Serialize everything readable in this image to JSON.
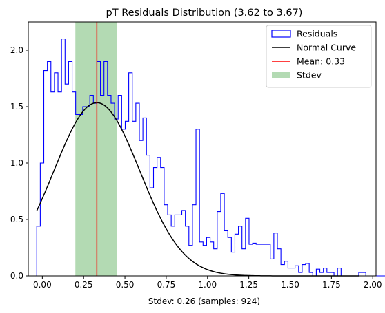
{
  "chart_data": {
    "type": "histogram",
    "title": "pT Residuals Distribution (3.62 to 3.67)",
    "xlabel": "Stdev: 0.26 (samples: 924)",
    "ylabel": "",
    "xlim": [
      -0.085,
      2.02
    ],
    "ylim": [
      0,
      2.25
    ],
    "xticks": [
      0.0,
      0.25,
      0.5,
      0.75,
      1.0,
      1.25,
      1.5,
      1.75,
      2.0
    ],
    "xtick_labels": [
      "0.00",
      "0.25",
      "0.50",
      "0.75",
      "1.00",
      "1.25",
      "1.50",
      "1.75",
      "2.00"
    ],
    "yticks": [
      0.0,
      0.5,
      1.0,
      1.5,
      2.0
    ],
    "ytick_labels": [
      "0.0",
      "0.5",
      "1.0",
      "1.5",
      "2.0"
    ],
    "grid": false,
    "legend_position": "top-right",
    "legend": [
      {
        "label": "Residuals",
        "kind": "hist-outline",
        "color": "#0000ff"
      },
      {
        "label": "Normal Curve",
        "kind": "line",
        "color": "#000000"
      },
      {
        "label": "Mean: 0.33",
        "kind": "line",
        "color": "#ff0000"
      },
      {
        "label": "Stdev",
        "kind": "patch",
        "color": "#b3dab3"
      }
    ],
    "histogram": {
      "color": "#0000ff",
      "bin_start": -0.0338,
      "bin_width": 0.02142,
      "heights": [
        0.44,
        1.0,
        1.82,
        1.9,
        1.63,
        1.8,
        1.63,
        2.1,
        1.7,
        1.9,
        1.63,
        1.43,
        1.43,
        1.5,
        1.5,
        1.6,
        1.53,
        1.9,
        1.6,
        1.9,
        1.6,
        1.53,
        1.39,
        1.6,
        1.3,
        1.37,
        1.8,
        1.37,
        1.53,
        1.2,
        1.4,
        1.07,
        0.78,
        0.96,
        1.05,
        0.96,
        0.63,
        0.54,
        0.44,
        0.54,
        0.54,
        0.58,
        0.44,
        0.27,
        0.63,
        1.3,
        0.3,
        0.27,
        0.34,
        0.3,
        0.24,
        0.57,
        0.73,
        0.4,
        0.34,
        0.21,
        0.37,
        0.44,
        0.24,
        0.51,
        0.28,
        0.29,
        0.28,
        0.28,
        0.28,
        0.28,
        0.15,
        0.38,
        0.24,
        0.1,
        0.13,
        0.07,
        0.07,
        0.09,
        0.03,
        0.1,
        0.11,
        0.03,
        0.0,
        0.06,
        0.03,
        0.07,
        0.03,
        0.03,
        0.0,
        0.07,
        0.0,
        0.0,
        0.0,
        0.0,
        0.0,
        0.03,
        0.03,
        0.0,
        0.0,
        0.0,
        0.0,
        0.0,
        0.0,
        0.0,
        0.0,
        0.0,
        0.0,
        0.0,
        0.0,
        0.0,
        0.0,
        0.0,
        0.0,
        0.0,
        0.0,
        0.0,
        0.0,
        0.0,
        0.0,
        0.0,
        0.0,
        0.0,
        0.0,
        0.03,
        0.0,
        0.0,
        0.0,
        0.0,
        0.0,
        0.0,
        0.0,
        0.0,
        0.0,
        0.0,
        0.0,
        0.0,
        0.0,
        0.0,
        0.0,
        0.0,
        0.0,
        0.0,
        0.0,
        0.0,
        0.0,
        0.0,
        0.0,
        0.0,
        0.0,
        0.0,
        0.03
      ]
    },
    "normal_curve": {
      "color": "#000000",
      "mean": 0.33,
      "stdev": 0.26,
      "x_range": [
        -0.0338,
        1.92
      ],
      "peak": 1.535
    },
    "mean_line": {
      "x": 0.33,
      "color": "#ff0000"
    },
    "stdev_band": {
      "x_range": [
        0.2,
        0.452
      ],
      "color": "#b3dab3"
    }
  }
}
